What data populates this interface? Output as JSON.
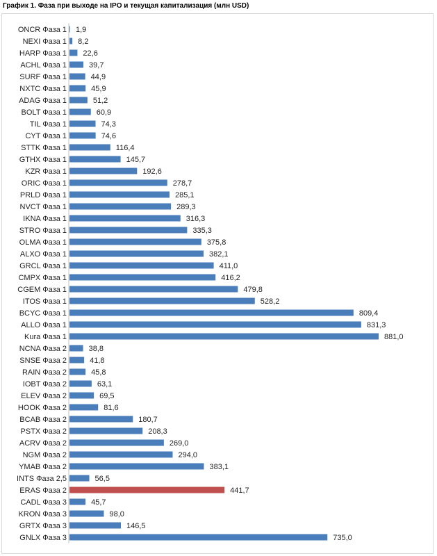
{
  "chart_data": {
    "type": "bar",
    "orientation": "horizontal",
    "title": "График 1. Фаза при выходе на IPO и текущая капитализация (млн USD)",
    "xlabel": "",
    "ylabel": "",
    "grid": false,
    "legend": "none",
    "xlim": [
      0,
      881
    ],
    "colors": {
      "default": "#4a7ebb",
      "highlight": "#c0504d"
    },
    "highlight_index": 39,
    "categories": [
      "ONCR Фаза 1",
      "NEXI Фаза 1",
      "HARP Фаза 1",
      "ACHL Фаза 1",
      "SURF Фаза 1",
      "NXTC Фаза 1",
      "ADAG Фаза 1",
      "BOLT Фаза 1",
      "TIL Фаза 1",
      "CYT Фаза 1",
      "STTK Фаза 1",
      "GTHX Фаза 1",
      "KZR Фаза 1",
      "ORIC Фаза 1",
      "PRLD Фаза 1",
      "NVCT Фаза 1",
      "IKNA Фаза 1",
      "STRO Фаза 1",
      "OLMA Фаза 1",
      "ALXO Фаза 1",
      "GRCL Фаза 1",
      "CMPX Фаза 1",
      "CGEM Фаза 1",
      "ITOS Фаза 1",
      "BCYC Фаза 1",
      "ALLO Фаза 1",
      "Kura Фаза 1",
      "NCNA Фаза 2",
      "SNSE Фаза 2",
      "RAIN Фаза 2",
      "IOBT Фаза 2",
      "ELEV Фаза 2",
      "HOOK Фаза 2",
      "BCAB Фаза 2",
      "PSTX Фаза 2",
      "ACRV Фаза 2",
      "NGM Фаза 2",
      "YMAB Фаза 2",
      "INTS Фаза 2,5",
      "ERAS Фаза 2",
      "CADL Фаза 3",
      "KRON Фаза 3",
      "GRTX Фаза 3",
      "GNLX Фаза 3"
    ],
    "values": [
      1.9,
      8.2,
      22.6,
      39.7,
      44.9,
      45.9,
      51.2,
      60.9,
      74.3,
      74.6,
      116.4,
      145.7,
      192.6,
      278.7,
      285.1,
      289.3,
      316.3,
      335.3,
      375.8,
      382.1,
      411.0,
      416.2,
      479.8,
      528.2,
      809.4,
      831.3,
      881.0,
      38.8,
      41.8,
      45.8,
      63.1,
      69.5,
      81.6,
      180.7,
      208.3,
      269.0,
      294.0,
      383.1,
      56.5,
      441.7,
      45.7,
      98.0,
      146.5,
      735.0
    ],
    "value_labels": [
      "1,9",
      "8,2",
      "22,6",
      "39,7",
      "44,9",
      "45,9",
      "51,2",
      "60,9",
      "74,3",
      "74,6",
      "116,4",
      "145,7",
      "192,6",
      "278,7",
      "285,1",
      "289,3",
      "316,3",
      "335,3",
      "375,8",
      "382,1",
      "411,0",
      "416,2",
      "479,8",
      "528,2",
      "809,4",
      "831,3",
      "881,0",
      "38,8",
      "41,8",
      "45,8",
      "63,1",
      "69,5",
      "81,6",
      "180,7",
      "208,3",
      "269,0",
      "294,0",
      "383,1",
      "56,5",
      "441,7",
      "45,7",
      "98,0",
      "146,5",
      "735,0"
    ]
  }
}
